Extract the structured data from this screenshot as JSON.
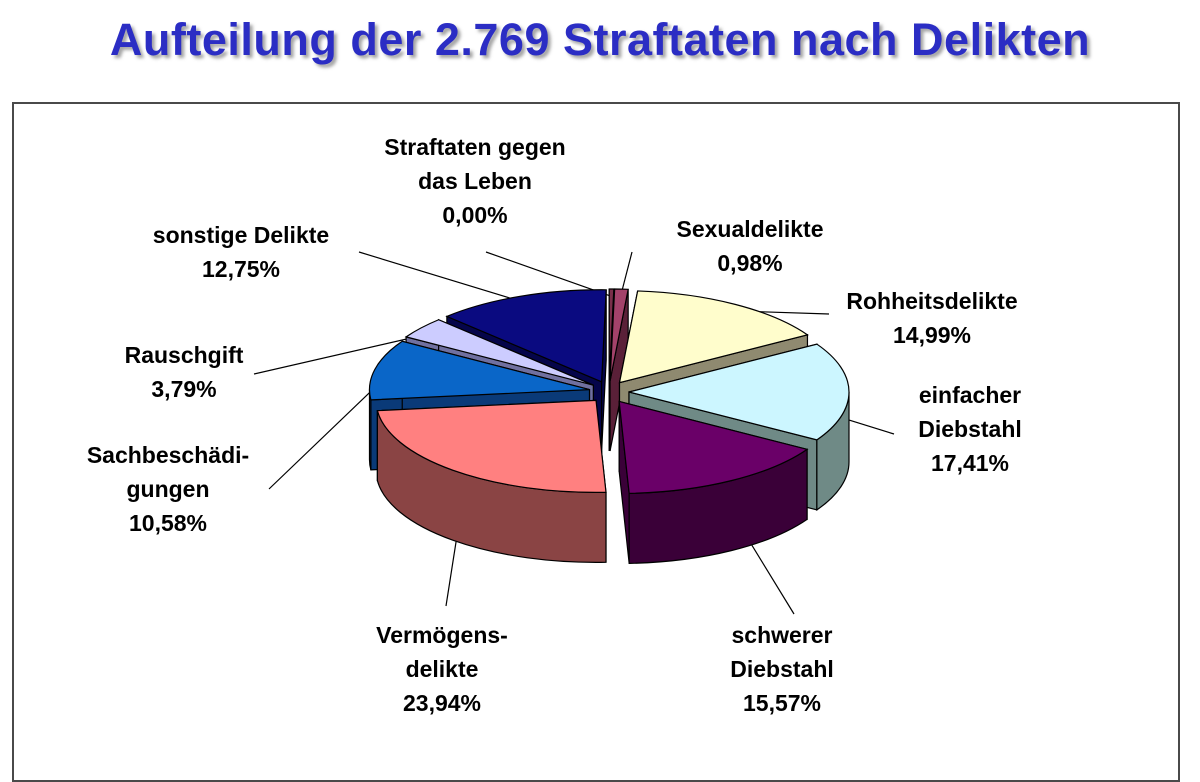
{
  "title": "Aufteilung der 2.769 Straftaten nach Delikten",
  "chart_data": {
    "type": "pie",
    "style": "3d-exploded",
    "title": "Aufteilung der 2.769 Straftaten nach Delikten",
    "slices": [
      {
        "key": "leben",
        "lines": [
          "Straftaten gegen",
          "das Leben"
        ],
        "pct_label": "0,00%",
        "value": 0.0,
        "top": "#7a2f4a",
        "side": "#4a1a2c"
      },
      {
        "key": "sexual",
        "lines": [
          "Sexualdelikte"
        ],
        "pct_label": "0,98%",
        "value": 0.98,
        "top": "#a3426a",
        "side": "#5a2038"
      },
      {
        "key": "rohheit",
        "lines": [
          "Rohheitsdelikte"
        ],
        "pct_label": "14,99%",
        "value": 14.99,
        "top": "#fffdcc",
        "side": "#8f8a70"
      },
      {
        "key": "einfach",
        "lines": [
          "einfacher",
          "Diebstahl"
        ],
        "pct_label": "17,41%",
        "value": 17.41,
        "top": "#ccf6ff",
        "side": "#6f8a86"
      },
      {
        "key": "schwer",
        "lines": [
          "schwerer",
          "Diebstahl"
        ],
        "pct_label": "15,57%",
        "value": 15.57,
        "top": "#6a0068",
        "side": "#3a0038"
      },
      {
        "key": "vermoegen",
        "lines": [
          "Vermögens-",
          "delikte"
        ],
        "pct_label": "23,94%",
        "value": 23.94,
        "top": "#ff8080",
        "side": "#8a4444"
      },
      {
        "key": "sach",
        "lines": [
          "Sachbeschädi-",
          "gungen"
        ],
        "pct_label": "10,58%",
        "value": 10.58,
        "top": "#0a66c8",
        "side": "#0a3a78"
      },
      {
        "key": "rausch",
        "lines": [
          "Rauschgift"
        ],
        "pct_label": "3,79%",
        "value": 3.79,
        "top": "#ccccff",
        "side": "#7070a0"
      },
      {
        "key": "sonstige",
        "lines": [
          "sonstige Delikte"
        ],
        "pct_label": "12,75%",
        "value": 12.75,
        "top": "#0a0a80",
        "side": "#05054a"
      }
    ]
  }
}
